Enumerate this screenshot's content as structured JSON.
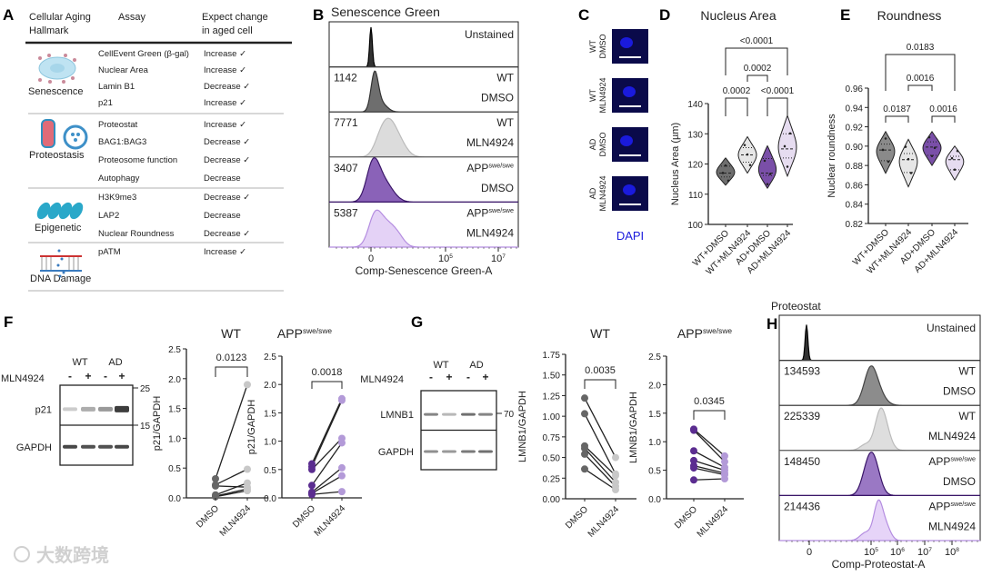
{
  "labels": {
    "A": "A",
    "B": "B",
    "C": "C",
    "D": "D",
    "E": "E",
    "F": "F",
    "G": "G",
    "H": "H"
  },
  "panel_a": {
    "headers": {
      "hallmark_1": "Cellular Aging",
      "hallmark_2": "Hallmark",
      "assay": "Assay",
      "change_1": "Expect change",
      "change_2": "in aged cell"
    },
    "groups": [
      {
        "name": "Senescence",
        "rows": [
          {
            "assay": "CellEvent Green (β-gal)",
            "change": "Increase ✓"
          },
          {
            "assay": "Nuclear Area",
            "change": "Increase ✓"
          },
          {
            "assay": "Lamin B1",
            "change": "Decrease ✓"
          },
          {
            "assay": "p21",
            "change": "Increase ✓"
          }
        ]
      },
      {
        "name": "Proteostasis",
        "rows": [
          {
            "assay": "Proteostat",
            "change": "Increase ✓"
          },
          {
            "assay": "BAG1:BAG3",
            "change": "Decrease ✓"
          },
          {
            "assay": "Proteosome function",
            "change": "Decrease ✓"
          },
          {
            "assay": "Autophagy",
            "change": "Decrease"
          }
        ]
      },
      {
        "name": "Epigenetic",
        "rows": [
          {
            "assay": "H3K9me3",
            "change": "Decrease ✓"
          },
          {
            "assay": "LAP2",
            "change": "Decrease"
          },
          {
            "assay": "Nuclear Roundness",
            "change": "Decrease ✓"
          }
        ]
      },
      {
        "name": "DNA Damage",
        "rows": [
          {
            "assay": "pATM",
            "change": "Increase ✓"
          }
        ]
      }
    ]
  },
  "panel_b": {
    "title": "Senescence Green",
    "rows": [
      {
        "mfi": "",
        "genotype": "Unstained",
        "sup": "",
        "treatment": "",
        "fill": "#333333",
        "edge": "#000000"
      },
      {
        "mfi": "1142",
        "genotype": "WT",
        "sup": "",
        "treatment": "DMSO",
        "fill": "#6e6e6e",
        "edge": "#333333"
      },
      {
        "mfi": "7771",
        "genotype": "WT",
        "sup": "",
        "treatment": "MLN4924",
        "fill": "#dcdcdc",
        "edge": "#bbbbbb"
      },
      {
        "mfi": "3407",
        "genotype": "APP",
        "sup": "swe/swe",
        "treatment": "DMSO",
        "fill": "#8a62b8",
        "edge": "#3a1668"
      },
      {
        "mfi": "5387",
        "genotype": "APP",
        "sup": "swe/swe",
        "treatment": "MLN4924",
        "fill": "#e4d2f6",
        "edge": "#b48de0"
      }
    ],
    "ticks": [
      {
        "base": "0",
        "exp": ""
      },
      {
        "base": "10",
        "exp": "5"
      },
      {
        "base": "10",
        "exp": "7"
      }
    ],
    "xlabel": "Comp-Senescence Green-A"
  },
  "panel_c": {
    "rows": [
      {
        "genotype": "WT",
        "treatment": "DMSO"
      },
      {
        "genotype": "WT",
        "treatment": "MLN4924"
      },
      {
        "genotype": "AD",
        "treatment": "DMSO"
      },
      {
        "genotype": "AD",
        "treatment": "MLN4924"
      }
    ],
    "stain": "DAPI",
    "stain_color": "#1a1adc"
  },
  "chart_data": [
    {
      "id": "D",
      "type": "violin",
      "title": "Nucleus Area",
      "ylabel": "Nucleus Area (µm)",
      "ylim": [
        100,
        140
      ],
      "yticks": [
        "100",
        "110",
        "120",
        "130",
        "140"
      ],
      "categories": [
        "WT+DMSO",
        "WT+MLN4924",
        "AD+DMSO",
        "AD+MLN4924"
      ],
      "colors": [
        "#6e6e6e",
        "#e6e6e6",
        "#7a4fa8",
        "#e6dcf0"
      ],
      "min": [
        113,
        117,
        112,
        116
      ],
      "median": [
        117,
        123,
        117,
        125
      ],
      "max": [
        122,
        129,
        126,
        136
      ],
      "comparisons": [
        {
          "a": 0,
          "b": 3,
          "p": "<0.0001"
        },
        {
          "a": 1,
          "b": 2,
          "p": "0.0002"
        },
        {
          "a": 0,
          "b": 1,
          "p": "0.0002"
        },
        {
          "a": 2,
          "b": 3,
          "p": "<0.0001"
        }
      ]
    },
    {
      "id": "E",
      "type": "violin",
      "title": "Roundness",
      "ylabel": "Nuclear roundness",
      "ylim": [
        0.82,
        0.96
      ],
      "yticks": [
        "0.82",
        "0.84",
        "0.86",
        "0.88",
        "0.90",
        "0.92",
        "0.94",
        "0.96"
      ],
      "categories": [
        "WT+DMSO",
        "WT+MLN4924",
        "AD+DMSO",
        "AD+MLN4924"
      ],
      "colors": [
        "#8a8a8a",
        "#e6e6e6",
        "#7a4fa8",
        "#e6dcf0"
      ],
      "min": [
        0.872,
        0.858,
        0.88,
        0.865
      ],
      "median": [
        0.896,
        0.886,
        0.899,
        0.886
      ],
      "max": [
        0.915,
        0.907,
        0.915,
        0.9
      ],
      "comparisons": [
        {
          "a": 0,
          "b": 3,
          "p": "0.0183"
        },
        {
          "a": 1,
          "b": 2,
          "p": "0.0016"
        },
        {
          "a": 0,
          "b": 1,
          "p": "0.0187"
        },
        {
          "a": 2,
          "b": 3,
          "p": "0.0016"
        }
      ]
    },
    {
      "id": "F-WT",
      "type": "scatter",
      "title": "WT",
      "title_sup": "",
      "ylabel": "p21/GAPDH",
      "ylim": [
        0,
        2.5
      ],
      "yticks": [
        "0.0",
        "0.5",
        "1.0",
        "1.5",
        "2.0",
        "2.5"
      ],
      "categories": [
        "DMSO",
        "MLN4924"
      ],
      "colors": [
        "#666666",
        "#c8c8c8"
      ],
      "pairs": [
        [
          0.32,
          1.9
        ],
        [
          0.22,
          0.48
        ],
        [
          0.2,
          0.18
        ],
        [
          0.05,
          0.25
        ],
        [
          0.03,
          0.15
        ],
        [
          0.02,
          0.12
        ]
      ],
      "p": "0.0123"
    },
    {
      "id": "F-APP",
      "type": "scatter",
      "title": "APP",
      "title_sup": "swe/swe",
      "ylabel": "p21/GAPDH",
      "ylim": [
        0,
        2.5
      ],
      "yticks": [
        "0.0",
        "0.5",
        "1.0",
        "1.5",
        "2.0",
        "2.5"
      ],
      "categories": [
        "DMSO",
        "MLN4924"
      ],
      "colors": [
        "#5b2d90",
        "#b39ad8"
      ],
      "pairs": [
        [
          0.6,
          1.75
        ],
        [
          0.55,
          1.72
        ],
        [
          0.5,
          1.05
        ],
        [
          0.22,
          0.97
        ],
        [
          0.1,
          0.53
        ],
        [
          0.08,
          0.39
        ],
        [
          0.06,
          0.11
        ]
      ],
      "p": "0.0018"
    },
    {
      "id": "G-WT",
      "type": "scatter",
      "title": "WT",
      "title_sup": "",
      "ylabel": "LMNB1/GAPDH",
      "ylim": [
        0,
        1.75
      ],
      "yticks": [
        "0.00",
        "0.25",
        "0.50",
        "0.75",
        "1.00",
        "1.25",
        "1.50",
        "1.75"
      ],
      "categories": [
        "DMSO",
        "MLN4924"
      ],
      "colors": [
        "#666666",
        "#c8c8c8"
      ],
      "pairs": [
        [
          1.22,
          0.5
        ],
        [
          1.03,
          0.3
        ],
        [
          0.64,
          0.28
        ],
        [
          0.61,
          0.2
        ],
        [
          0.54,
          0.15
        ],
        [
          0.36,
          0.11
        ]
      ],
      "p": "0.0035"
    },
    {
      "id": "G-APP",
      "type": "scatter",
      "title": "APP",
      "title_sup": "swe/swe",
      "ylabel": "LMNB1/GAPDH",
      "ylim": [
        0,
        2.5
      ],
      "yticks": [
        "0.0",
        "0.5",
        "1.0",
        "1.5",
        "2.0",
        "2.5"
      ],
      "categories": [
        "DMSO",
        "MLN4924"
      ],
      "colors": [
        "#5b2d90",
        "#b39ad8"
      ],
      "pairs": [
        [
          1.22,
          0.75
        ],
        [
          1.2,
          0.65
        ],
        [
          0.84,
          0.55
        ],
        [
          0.67,
          0.5
        ],
        [
          0.58,
          0.45
        ],
        [
          0.54,
          0.42
        ],
        [
          0.33,
          0.35
        ]
      ],
      "p": "0.0345"
    }
  ],
  "panel_f_blot": {
    "groups": [
      "WT",
      "AD"
    ],
    "treatment_label": "MLN4924",
    "signs": [
      "-",
      "+",
      "-",
      "+"
    ],
    "bands": [
      "p21",
      "GAPDH"
    ],
    "markers": [
      "25",
      "15"
    ]
  },
  "panel_g_blot": {
    "groups": [
      "WT",
      "AD"
    ],
    "treatment_label": "MLN4924",
    "signs": [
      "-",
      "+",
      "-",
      "+"
    ],
    "bands": [
      "LMNB1",
      "GAPDH"
    ],
    "markers": [
      "70"
    ]
  },
  "panel_h": {
    "title": "Proteostat",
    "rows": [
      {
        "mfi": "",
        "genotype": "Unstained",
        "sup": "",
        "treatment": "",
        "fill": "#333333",
        "edge": "#000000"
      },
      {
        "mfi": "134593",
        "genotype": "WT",
        "sup": "",
        "treatment": "DMSO",
        "fill": "#8c8c8c",
        "edge": "#444444"
      },
      {
        "mfi": "225339",
        "genotype": "WT",
        "sup": "",
        "treatment": "MLN4924",
        "fill": "#dedede",
        "edge": "#bbbbbb"
      },
      {
        "mfi": "148450",
        "genotype": "APP",
        "sup": "swe/swe",
        "treatment": "DMSO",
        "fill": "#9a78c4",
        "edge": "#3a1668"
      },
      {
        "mfi": "214436",
        "genotype": "APP",
        "sup": "swe/swe",
        "treatment": "MLN4924",
        "fill": "#e6d4f8",
        "edge": "#b48de0"
      }
    ],
    "ticks": [
      {
        "base": "0",
        "exp": ""
      },
      {
        "base": "10",
        "exp": "5"
      },
      {
        "base": "10",
        "exp": "6"
      },
      {
        "base": "10",
        "exp": "7"
      },
      {
        "base": "10",
        "exp": "8"
      }
    ],
    "xlabel": "Comp-Proteostat-A"
  },
  "watermark": "大数跨境"
}
